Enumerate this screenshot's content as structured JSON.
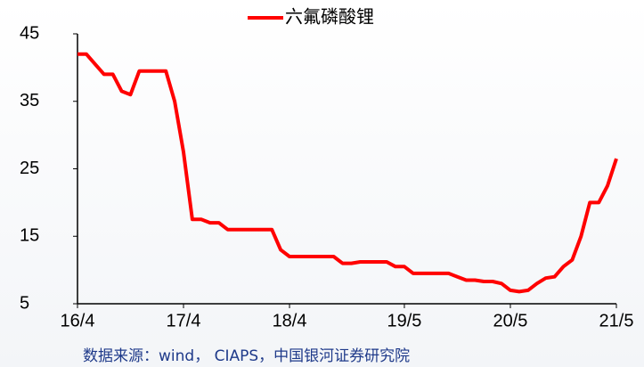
{
  "chart_data": {
    "type": "line",
    "series": [
      {
        "name": "六氟磷酸锂",
        "color": "#ff0000",
        "values": [
          42,
          42,
          40.5,
          39,
          39,
          36.5,
          36,
          39.5,
          39.5,
          39.5,
          39.5,
          35,
          27.5,
          17.5,
          17.5,
          17,
          17,
          16,
          16,
          16,
          16,
          16,
          16,
          13,
          12,
          12,
          12,
          12,
          12,
          12,
          11,
          11,
          11.2,
          11.2,
          11.2,
          11.2,
          10.5,
          10.5,
          9.5,
          9.5,
          9.5,
          9.5,
          9.5,
          9,
          8.5,
          8.5,
          8.3,
          8.3,
          8,
          7,
          6.8,
          7,
          8,
          8.8,
          9,
          10.5,
          11.5,
          15,
          20,
          20,
          22.5,
          26.5
        ]
      }
    ],
    "x": [
      "16/4",
      "16/5",
      "16/6",
      "16/7",
      "16/8",
      "16/9",
      "16/10",
      "16/11",
      "16/12",
      "17/1",
      "17/2",
      "17/3",
      "17/4",
      "17/5",
      "17/6",
      "17/7",
      "17/8",
      "17/9",
      "17/10",
      "17/11",
      "17/12",
      "18/1",
      "18/2",
      "18/3",
      "18/4",
      "18/5",
      "18/6",
      "18/7",
      "18/8",
      "18/9",
      "18/10",
      "18/11",
      "18/12",
      "19/1",
      "19/2",
      "19/3",
      "19/4",
      "19/5",
      "19/6",
      "19/7",
      "19/8",
      "19/9",
      "19/10",
      "19/11",
      "19/12",
      "20/1",
      "20/2",
      "20/3",
      "20/4",
      "20/5",
      "20/6",
      "20/7",
      "20/8",
      "20/9",
      "20/10",
      "20/11",
      "20/12",
      "21/1",
      "21/2",
      "21/3",
      "21/4",
      "21/5"
    ],
    "xlim": [
      "16/4",
      "21/5"
    ],
    "xticks": [
      "16/4",
      "17/4",
      "18/4",
      "19/5",
      "20/5",
      "21/5"
    ],
    "ylim": [
      5,
      45
    ],
    "yticks": [
      5,
      15,
      25,
      35,
      45
    ],
    "grid": false,
    "source": "数据来源：wind， CIAPS，中国银河证券研究院"
  }
}
